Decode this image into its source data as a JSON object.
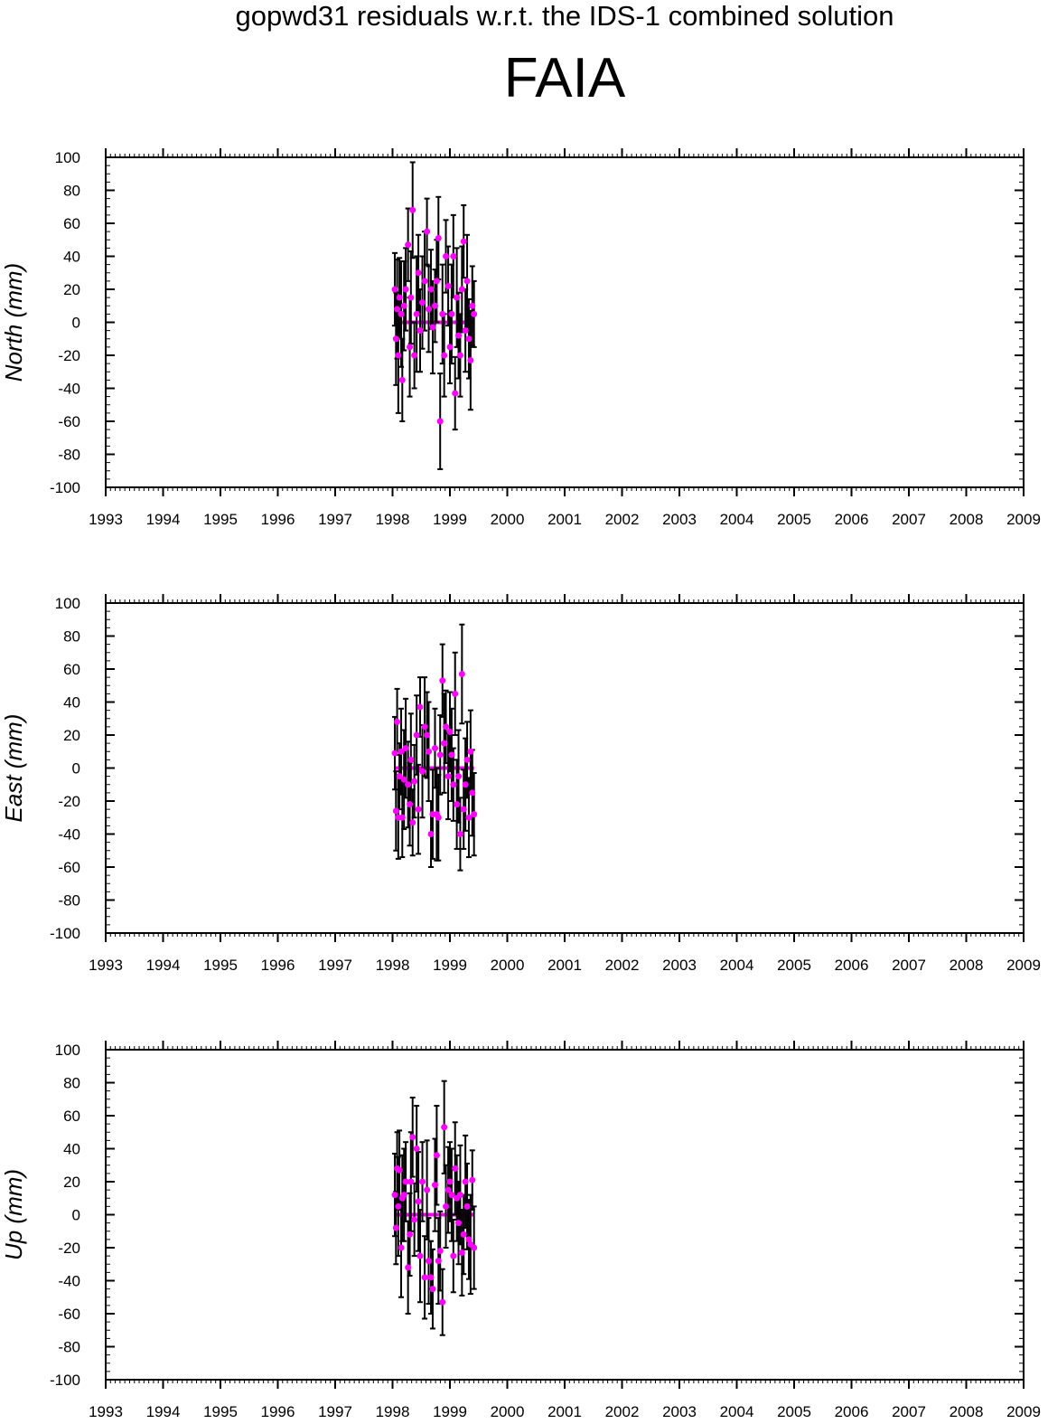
{
  "figure": {
    "suptitle": "gopwd31 residuals w.r.t. the IDS-1 combined solution",
    "station": "FAIA"
  },
  "colors": {
    "points": "#ff00ff",
    "errorbars": "#000000",
    "axes": "#000000",
    "background": "#ffffff"
  },
  "chart_data": [
    {
      "type": "scatter",
      "ylabel": "North (mm)",
      "xlim": [
        1993,
        2009
      ],
      "ylim": [
        -100,
        100
      ],
      "xticks": [
        "1993",
        "1994",
        "1995",
        "1996",
        "1997",
        "1998",
        "1999",
        "2000",
        "2001",
        "2002",
        "2003",
        "2004",
        "2005",
        "2006",
        "2007",
        "2008",
        "2009"
      ],
      "yticks": [
        "100",
        "80",
        "60",
        "40",
        "20",
        "0",
        "-20",
        "-40",
        "-60",
        "-80",
        "-100"
      ],
      "series": [
        {
          "x": [
            1998.04,
            1998.06,
            1998.08,
            1998.1,
            1998.12,
            1998.15,
            1998.17,
            1998.2,
            1998.23,
            1998.27,
            1998.3,
            1998.32,
            1998.35,
            1998.38,
            1998.42,
            1998.45,
            1998.48,
            1998.52,
            1998.56,
            1998.6,
            1998.63,
            1998.67,
            1998.7,
            1998.74,
            1998.77,
            1998.8,
            1998.83,
            1998.87,
            1998.9,
            1998.93,
            1998.97,
            1999.0,
            1999.03,
            1999.06,
            1999.09,
            1999.12,
            1999.15,
            1999.18,
            1999.21,
            1999.24,
            1999.27,
            1999.3,
            1999.33,
            1999.36,
            1999.39,
            1999.42
          ],
          "y": [
            20,
            -10,
            8,
            -20,
            15,
            5,
            -35,
            10,
            20,
            47,
            -15,
            15,
            68,
            -20,
            5,
            30,
            -5,
            12,
            25,
            55,
            8,
            20,
            -3,
            10,
            25,
            51,
            -60,
            5,
            -20,
            40,
            22,
            -15,
            5,
            40,
            -43,
            15,
            -8,
            -20,
            20,
            49,
            -5,
            25,
            -10,
            -23,
            10,
            5
          ],
          "err": [
            22,
            28,
            30,
            35,
            24,
            32,
            25,
            27,
            25,
            22,
            30,
            28,
            29,
            20,
            35,
            23,
            25,
            28,
            30,
            20,
            26,
            24,
            28,
            22,
            25,
            25,
            29,
            30,
            25,
            22,
            24,
            22,
            30,
            25,
            22,
            30,
            26,
            25,
            26,
            22,
            25,
            28,
            24,
            30,
            24,
            20
          ]
        }
      ]
    },
    {
      "type": "scatter",
      "ylabel": "East (mm)",
      "xlim": [
        1993,
        2009
      ],
      "ylim": [
        -100,
        100
      ],
      "xticks": [
        "1993",
        "1994",
        "1995",
        "1996",
        "1997",
        "1998",
        "1999",
        "2000",
        "2001",
        "2002",
        "2003",
        "2004",
        "2005",
        "2006",
        "2007",
        "2008",
        "2009"
      ],
      "yticks": [
        "100",
        "80",
        "60",
        "40",
        "20",
        "0",
        "-20",
        "-40",
        "-60",
        "-80",
        "-100"
      ],
      "series": [
        {
          "x": [
            1998.04,
            1998.06,
            1998.08,
            1998.1,
            1998.12,
            1998.15,
            1998.17,
            1998.2,
            1998.23,
            1998.27,
            1998.3,
            1998.32,
            1998.35,
            1998.38,
            1998.42,
            1998.45,
            1998.48,
            1998.52,
            1998.56,
            1998.6,
            1998.63,
            1998.67,
            1998.7,
            1998.74,
            1998.77,
            1998.8,
            1998.83,
            1998.87,
            1998.9,
            1998.93,
            1998.97,
            1999.0,
            1999.03,
            1999.06,
            1999.09,
            1999.12,
            1999.15,
            1999.18,
            1999.21,
            1999.24,
            1999.27,
            1999.3,
            1999.33,
            1999.36,
            1999.39,
            1999.42
          ],
          "y": [
            9,
            -26,
            28,
            -30,
            -5,
            10,
            -30,
            -7,
            12,
            -10,
            -22,
            5,
            -33,
            -8,
            20,
            -25,
            37,
            -2,
            25,
            20,
            10,
            -40,
            -28,
            12,
            -28,
            -30,
            8,
            53,
            15,
            25,
            -5,
            22,
            8,
            -10,
            45,
            -22,
            -5,
            -40,
            57,
            -25,
            -10,
            5,
            -30,
            10,
            -15,
            -28
          ],
          "err": [
            22,
            24,
            20,
            25,
            20,
            26,
            24,
            30,
            30,
            26,
            25,
            28,
            20,
            22,
            24,
            27,
            18,
            28,
            30,
            26,
            30,
            20,
            27,
            24,
            28,
            26,
            24,
            22,
            30,
            22,
            26,
            24,
            28,
            22,
            25,
            27,
            28,
            22,
            30,
            24,
            28,
            23,
            24,
            25,
            26,
            25
          ]
        }
      ]
    },
    {
      "type": "scatter",
      "ylabel": "Up (mm)",
      "xlim": [
        1993,
        2009
      ],
      "ylim": [
        -100,
        100
      ],
      "xticks": [
        "1993",
        "1994",
        "1995",
        "1996",
        "1997",
        "1998",
        "1999",
        "2000",
        "2001",
        "2002",
        "2003",
        "2004",
        "2005",
        "2006",
        "2007",
        "2008",
        "2009"
      ],
      "yticks": [
        "100",
        "80",
        "60",
        "40",
        "20",
        "0",
        "-20",
        "-40",
        "-60",
        "-80",
        "-100"
      ],
      "series": [
        {
          "x": [
            1998.04,
            1998.06,
            1998.08,
            1998.1,
            1998.12,
            1998.15,
            1998.17,
            1998.2,
            1998.23,
            1998.27,
            1998.3,
            1998.32,
            1998.35,
            1998.38,
            1998.42,
            1998.45,
            1998.48,
            1998.52,
            1998.56,
            1998.6,
            1998.63,
            1998.67,
            1998.7,
            1998.74,
            1998.77,
            1998.8,
            1998.83,
            1998.87,
            1998.9,
            1998.93,
            1998.97,
            1999.0,
            1999.03,
            1999.06,
            1999.09,
            1999.12,
            1999.15,
            1999.18,
            1999.21,
            1999.24,
            1999.27,
            1999.3,
            1999.33,
            1999.36,
            1999.39,
            1999.42
          ],
          "y": [
            12,
            -8,
            28,
            5,
            27,
            -20,
            10,
            12,
            20,
            -32,
            -12,
            20,
            47,
            -3,
            40,
            8,
            -25,
            20,
            -38,
            15,
            -28,
            -38,
            -45,
            18,
            36,
            -28,
            -22,
            -53,
            53,
            5,
            15,
            20,
            12,
            -25,
            28,
            10,
            -5,
            12,
            -23,
            -12,
            20,
            5,
            -15,
            -18,
            21,
            -20
          ],
          "err": [
            25,
            22,
            22,
            30,
            24,
            30,
            26,
            28,
            24,
            28,
            25,
            30,
            24,
            22,
            26,
            30,
            28,
            24,
            25,
            30,
            26,
            22,
            24,
            28,
            30,
            26,
            24,
            20,
            28,
            25,
            26,
            24,
            28,
            22,
            28,
            26,
            25,
            30,
            26,
            24,
            28,
            26,
            24,
            30,
            18,
            25
          ]
        }
      ]
    }
  ]
}
